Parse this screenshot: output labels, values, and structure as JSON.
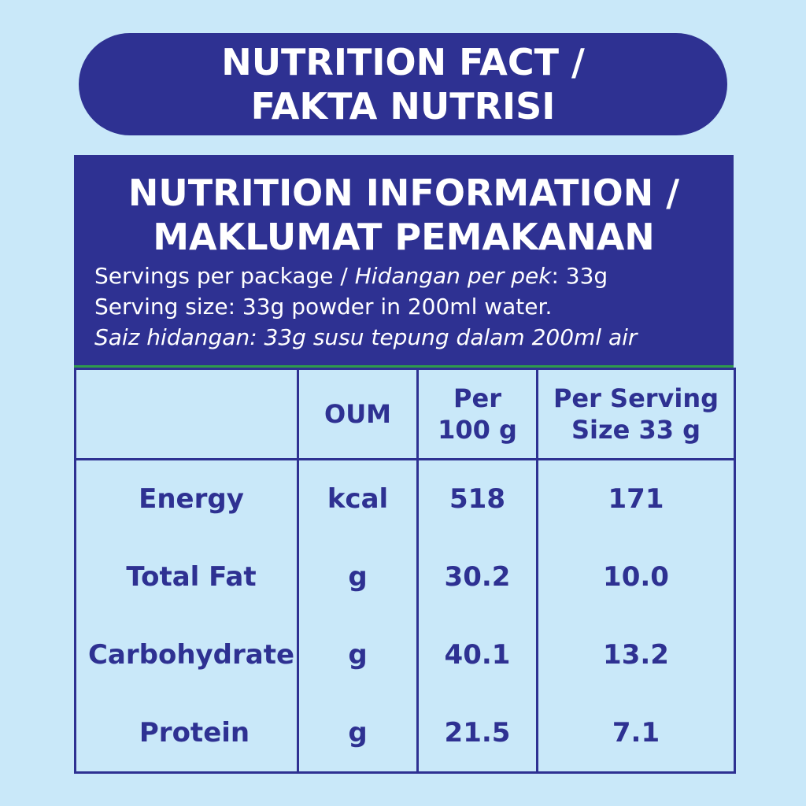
{
  "header": {
    "title_line1": "NUTRITION FACT /",
    "title_line2": "FAKTA NUTRISI"
  },
  "panel": {
    "title_line1": "NUTRITION INFORMATION /",
    "title_line2": "MAKLUMAT PEMAKANAN",
    "servings_prefix": "Servings per package / ",
    "servings_italic": "Hidangan per pek",
    "servings_suffix": ": 33g",
    "serving_size": "Serving size: 33g powder in 200ml water.",
    "serving_size_ms": "Saiz hidangan: 33g susu tepung dalam 200ml air"
  },
  "table": {
    "headers": {
      "name": "",
      "oum": "OUM",
      "per100_line1": "Per",
      "per100_line2": "100 g",
      "perserv_line1": "Per Serving",
      "perserv_line2": "Size 33 g"
    },
    "rows": [
      {
        "name": "Energy",
        "unit": "kcal",
        "per100": "518",
        "perserving": "171"
      },
      {
        "name": "Total Fat",
        "unit": "g",
        "per100": "30.2",
        "perserving": "10.0"
      },
      {
        "name": "Carbohydrate",
        "unit": "g",
        "per100": "40.1",
        "perserving": "13.2"
      },
      {
        "name": "Protein",
        "unit": "g",
        "per100": "21.5",
        "perserving": "7.1"
      }
    ]
  },
  "colors": {
    "background": "#c9e8f9",
    "primary": "#2e3192",
    "divider_accent": "#2f9a4d",
    "text_on_primary": "#ffffff"
  }
}
